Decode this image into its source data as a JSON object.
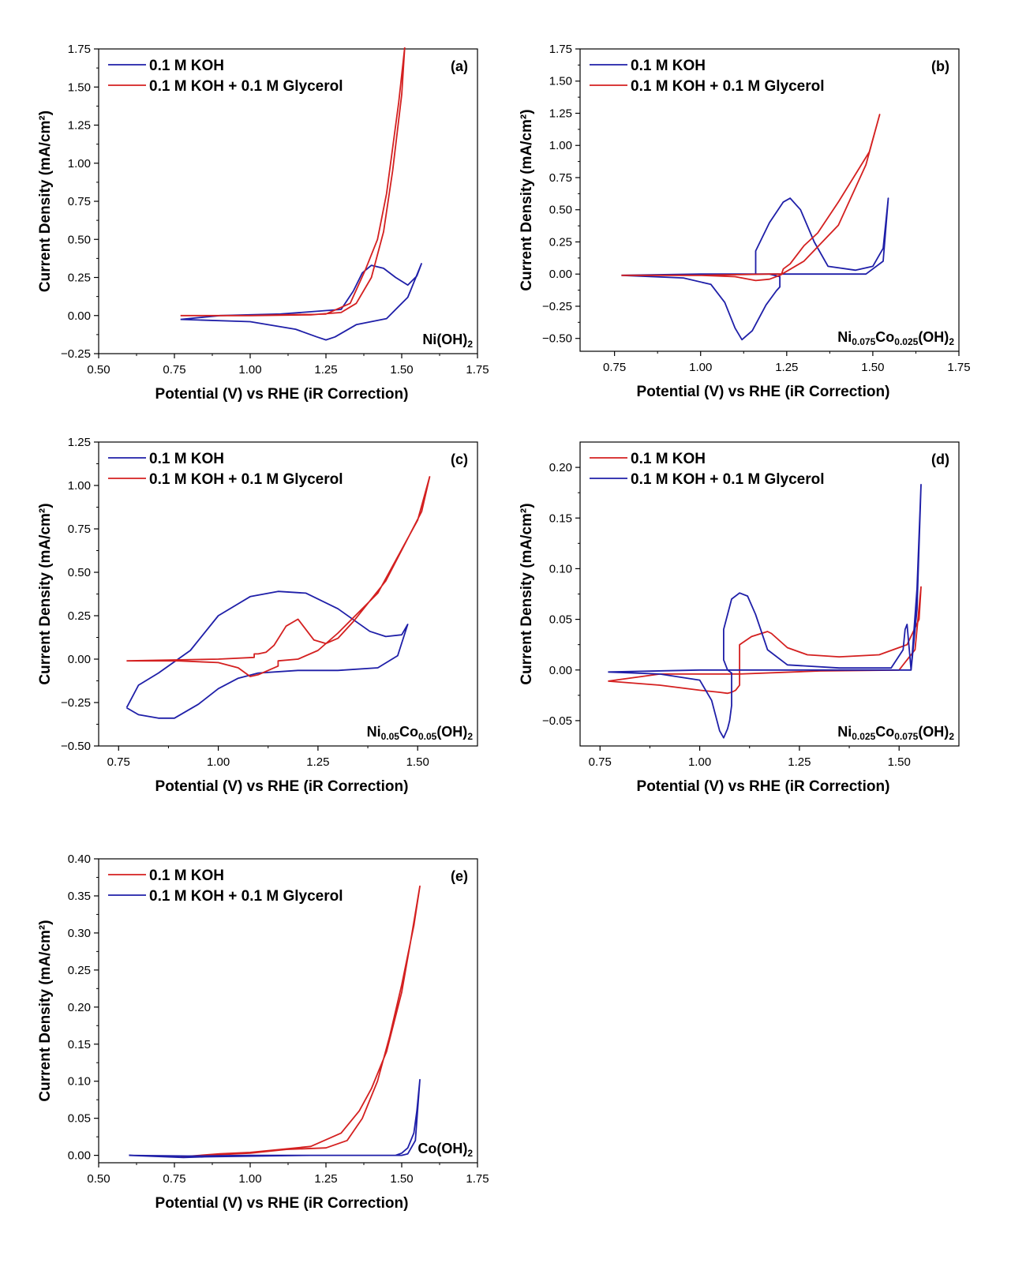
{
  "chart_data": [
    {
      "type": "line",
      "panel": "(a)",
      "compound": [
        {
          "t": "Ni(OH)"
        },
        {
          "t": "2",
          "sub": true
        }
      ],
      "xlabel": "Potential (V) vs RHE (iR Correction)",
      "ylabel": "Current Density (mA/cm²)",
      "xlim": [
        0.5,
        1.75
      ],
      "ylim": [
        -0.25,
        1.75
      ],
      "xticks": [
        "0.50",
        "0.75",
        "1.00",
        "1.25",
        "1.50",
        "1.75"
      ],
      "yticks": [
        "-0.25",
        "0.00",
        "0.25",
        "0.50",
        "0.75",
        "1.00",
        "1.25",
        "1.50",
        "1.75"
      ],
      "legend_position": "top-left",
      "series": [
        {
          "name": "0.1 M KOH",
          "color": "#1f1fa8",
          "x": [
            0.77,
            1.0,
            1.15,
            1.22,
            1.25,
            1.28,
            1.35,
            1.45,
            1.52,
            1.565,
            1.55,
            1.52,
            1.48,
            1.44,
            1.4,
            1.37,
            1.34,
            1.3,
            1.1,
            0.9,
            0.77
          ],
          "y": [
            -0.025,
            -0.04,
            -0.09,
            -0.14,
            -0.16,
            -0.14,
            -0.06,
            -0.02,
            0.12,
            0.34,
            0.26,
            0.2,
            0.25,
            0.31,
            0.33,
            0.28,
            0.16,
            0.04,
            0.01,
            0.0,
            -0.025
          ]
        },
        {
          "name": "0.1 M KOH + 0.1 M Glycerol",
          "color": "#d42020",
          "x": [
            0.77,
            1.0,
            1.2,
            1.3,
            1.35,
            1.4,
            1.44,
            1.47,
            1.5,
            1.51,
            1.49,
            1.45,
            1.42,
            1.38,
            1.33,
            1.25,
            1.0,
            0.77
          ],
          "y": [
            0.0,
            0.0,
            0.005,
            0.02,
            0.08,
            0.25,
            0.55,
            0.95,
            1.45,
            1.76,
            1.4,
            0.8,
            0.5,
            0.3,
            0.08,
            0.01,
            0.0,
            0.0
          ]
        }
      ]
    },
    {
      "type": "line",
      "panel": "(b)",
      "compound": [
        {
          "t": "Ni"
        },
        {
          "t": "0.075",
          "sub": true
        },
        {
          "t": "Co"
        },
        {
          "t": "0.025",
          "sub": true
        },
        {
          "t": "(OH)"
        },
        {
          "t": "2",
          "sub": true
        }
      ],
      "xlabel": "Potential (V) vs RHE (iR Correction)",
      "ylabel": "Current Density (mA/cm²)",
      "xlim": [
        0.65,
        1.75
      ],
      "ylim": [
        -0.6,
        1.75
      ],
      "xticks": [
        "0.75",
        "1.00",
        "1.25",
        "1.50",
        "1.75"
      ],
      "yticks": [
        "-0.50",
        "-0.25",
        "0.00",
        "0.25",
        "0.50",
        "0.75",
        "1.00",
        "1.25",
        "1.50",
        "1.75"
      ],
      "legend_position": "top-left",
      "series": [
        {
          "name": "0.1 M KOH",
          "color": "#1f1fa8",
          "x": [
            0.77,
            0.95,
            1.03,
            1.07,
            1.1,
            1.12,
            1.15,
            1.19,
            1.22,
            1.23,
            1.23,
            1.2,
            1.16,
            1.16,
            1.2,
            1.24,
            1.26,
            1.29,
            1.33,
            1.37,
            1.45,
            1.5,
            1.53,
            1.545,
            1.53,
            1.48,
            1.3,
            1.0,
            0.77
          ],
          "y": [
            -0.01,
            -0.03,
            -0.08,
            -0.22,
            -0.42,
            -0.51,
            -0.44,
            -0.24,
            -0.13,
            -0.1,
            -0.02,
            0.0,
            0.0,
            0.18,
            0.4,
            0.56,
            0.59,
            0.5,
            0.25,
            0.06,
            0.03,
            0.06,
            0.2,
            0.59,
            0.1,
            0.0,
            0.0,
            0.0,
            -0.01
          ]
        },
        {
          "name": "0.1 M KOH + 0.1 M Glycerol",
          "color": "#d42020",
          "x": [
            0.77,
            1.0,
            1.1,
            1.16,
            1.2,
            1.23,
            1.3,
            1.4,
            1.48,
            1.52,
            1.49,
            1.4,
            1.34,
            1.3,
            1.26,
            1.24,
            1.235,
            1.2,
            1.0,
            0.77
          ],
          "y": [
            -0.01,
            -0.01,
            -0.02,
            -0.05,
            -0.04,
            -0.01,
            0.1,
            0.38,
            0.85,
            1.24,
            0.95,
            0.56,
            0.32,
            0.22,
            0.08,
            0.04,
            0.0,
            0.0,
            -0.01,
            -0.01
          ]
        }
      ]
    },
    {
      "type": "line",
      "panel": "(c)",
      "compound": [
        {
          "t": "Ni"
        },
        {
          "t": "0.05",
          "sub": true
        },
        {
          "t": "Co"
        },
        {
          "t": "0.05",
          "sub": true
        },
        {
          "t": "(OH)"
        },
        {
          "t": "2",
          "sub": true
        }
      ],
      "xlabel": "Potential (V) vs RHE (iR Correction)",
      "ylabel": "Current Density (mA/cm²)",
      "xlim": [
        0.7,
        1.65
      ],
      "ylim": [
        -0.5,
        1.25
      ],
      "xticks": [
        "0.75",
        "1.00",
        "1.25",
        "1.50"
      ],
      "yticks": [
        "-0.50",
        "-0.25",
        "0.00",
        "0.25",
        "0.50",
        "0.75",
        "1.00",
        "1.25"
      ],
      "legend_position": "top-left",
      "series": [
        {
          "name": "0.1 M KOH",
          "color": "#1f1fa8",
          "x": [
            0.77,
            0.8,
            0.85,
            0.89,
            0.95,
            1.0,
            1.05,
            1.1,
            1.2,
            1.3,
            1.4,
            1.45,
            1.475,
            1.46,
            1.42,
            1.38,
            1.3,
            1.22,
            1.15,
            1.08,
            1.0,
            0.93,
            0.85,
            0.8,
            0.77
          ],
          "y": [
            -0.28,
            -0.32,
            -0.34,
            -0.34,
            -0.26,
            -0.17,
            -0.11,
            -0.08,
            -0.065,
            -0.065,
            -0.05,
            0.02,
            0.2,
            0.14,
            0.13,
            0.16,
            0.29,
            0.38,
            0.39,
            0.36,
            0.25,
            0.05,
            -0.08,
            -0.15,
            -0.28
          ]
        },
        {
          "name": "0.1 M KOH + 0.1 M Glycerol",
          "color": "#d42020",
          "x": [
            0.77,
            0.9,
            1.0,
            1.05,
            1.08,
            1.1,
            1.13,
            1.15,
            1.15,
            1.2,
            1.25,
            1.3,
            1.4,
            1.5,
            1.53,
            1.51,
            1.42,
            1.34,
            1.3,
            1.27,
            1.24,
            1.2,
            1.17,
            1.14,
            1.12,
            1.1,
            1.09,
            1.09,
            1.0,
            0.77
          ],
          "y": [
            -0.01,
            -0.01,
            -0.02,
            -0.05,
            -0.1,
            -0.09,
            -0.06,
            -0.04,
            -0.01,
            0.0,
            0.05,
            0.15,
            0.38,
            0.8,
            1.05,
            0.85,
            0.45,
            0.22,
            0.12,
            0.09,
            0.11,
            0.23,
            0.19,
            0.08,
            0.04,
            0.03,
            0.03,
            0.01,
            0.0,
            -0.01
          ]
        }
      ]
    },
    {
      "type": "line",
      "panel": "(d)",
      "compound": [
        {
          "t": "Ni"
        },
        {
          "t": "0.025",
          "sub": true
        },
        {
          "t": "Co"
        },
        {
          "t": "0.075",
          "sub": true
        },
        {
          "t": "(OH)"
        },
        {
          "t": "2",
          "sub": true
        }
      ],
      "xlabel": "Potential (V) vs RHE (iR Correction)",
      "ylabel": "Current Density (mA/cm²)",
      "xlim": [
        0.7,
        1.65
      ],
      "ylim": [
        -0.075,
        0.225
      ],
      "xticks": [
        "0.75",
        "1.00",
        "1.25",
        "1.50"
      ],
      "yticks": [
        "-0.05",
        "0.00",
        "0.05",
        "0.10",
        "0.15",
        "0.20"
      ],
      "legend_position": "top-left",
      "series": [
        {
          "name": "0.1 M KOH",
          "color": "#d42020",
          "x": [
            0.77,
            0.9,
            1.0,
            1.05,
            1.07,
            1.08,
            1.09,
            1.1,
            1.1,
            1.13,
            1.17,
            1.18,
            1.22,
            1.27,
            1.35,
            1.45,
            1.52,
            1.55,
            1.555,
            1.54,
            1.5,
            1.3,
            1.1,
            0.9,
            0.77
          ],
          "y": [
            -0.011,
            -0.015,
            -0.02,
            -0.022,
            -0.023,
            -0.022,
            -0.02,
            -0.015,
            0.025,
            0.033,
            0.038,
            0.036,
            0.022,
            0.015,
            0.013,
            0.015,
            0.025,
            0.05,
            0.082,
            0.02,
            0.0,
            -0.001,
            -0.004,
            -0.004,
            -0.011
          ]
        },
        {
          "name": "0.1 M KOH + 0.1 M Glycerol",
          "color": "#1f1fa8",
          "x": [
            0.77,
            0.9,
            1.0,
            1.03,
            1.05,
            1.06,
            1.07,
            1.075,
            1.08,
            1.08,
            1.07,
            1.06,
            1.06,
            1.08,
            1.1,
            1.12,
            1.14,
            1.17,
            1.22,
            1.35,
            1.48,
            1.51,
            1.515,
            1.52,
            1.53,
            1.545,
            1.555,
            1.545,
            1.53,
            1.48,
            1.2,
            1.0,
            0.77
          ],
          "y": [
            -0.002,
            -0.004,
            -0.01,
            -0.03,
            -0.06,
            -0.067,
            -0.058,
            -0.05,
            -0.035,
            -0.003,
            0.0,
            0.01,
            0.04,
            0.07,
            0.076,
            0.073,
            0.055,
            0.02,
            0.005,
            0.002,
            0.002,
            0.02,
            0.04,
            0.045,
            0.0,
            0.08,
            0.183,
            0.06,
            0.0,
            0.0,
            0.0,
            0.0,
            -0.002
          ]
        }
      ]
    },
    {
      "type": "line",
      "panel": "(e)",
      "compound": [
        {
          "t": "Co(OH)"
        },
        {
          "t": "2",
          "sub": true
        }
      ],
      "xlabel": "Potential (V) vs RHE (iR Correction)",
      "ylabel": "Current Density (mA/cm²)",
      "xlim": [
        0.5,
        1.75
      ],
      "ylim": [
        -0.01,
        0.4
      ],
      "xticks": [
        "0.50",
        "0.75",
        "1.00",
        "1.25",
        "1.50",
        "1.75"
      ],
      "yticks": [
        "0.00",
        "0.05",
        "0.10",
        "0.15",
        "0.20",
        "0.25",
        "0.30",
        "0.35",
        "0.40"
      ],
      "legend_position": "top-left",
      "series": [
        {
          "name": "0.1 M KOH",
          "color": "#d42020",
          "x": [
            0.77,
            0.9,
            1.0,
            1.1,
            1.2,
            1.3,
            1.36,
            1.4,
            1.45,
            1.5,
            1.53,
            1.56,
            1.54,
            1.5,
            1.46,
            1.42,
            1.37,
            1.32,
            1.25,
            1.12,
            1.0,
            0.85,
            0.77
          ],
          "y": [
            -0.002,
            0.002,
            0.004,
            0.008,
            0.012,
            0.03,
            0.06,
            0.09,
            0.14,
            0.22,
            0.29,
            0.363,
            0.31,
            0.23,
            0.16,
            0.1,
            0.05,
            0.02,
            0.01,
            0.008,
            0.003,
            0.0,
            -0.002
          ]
        },
        {
          "name": "0.1 M KOH + 0.1 M Glycerol",
          "color": "#1f1fa8",
          "x": [
            0.6,
            0.8,
            1.0,
            1.2,
            1.4,
            1.48,
            1.5,
            1.52,
            1.54,
            1.55,
            1.56,
            1.545,
            1.52,
            1.5,
            1.4,
            1.2,
            0.85,
            0.78,
            0.6
          ],
          "y": [
            0.0,
            -0.001,
            0.0,
            0.0,
            0.0,
            0.0,
            0.003,
            0.01,
            0.03,
            0.06,
            0.102,
            0.02,
            0.002,
            0.0,
            0.0,
            0.0,
            -0.002,
            -0.003,
            0.0
          ]
        }
      ]
    }
  ]
}
